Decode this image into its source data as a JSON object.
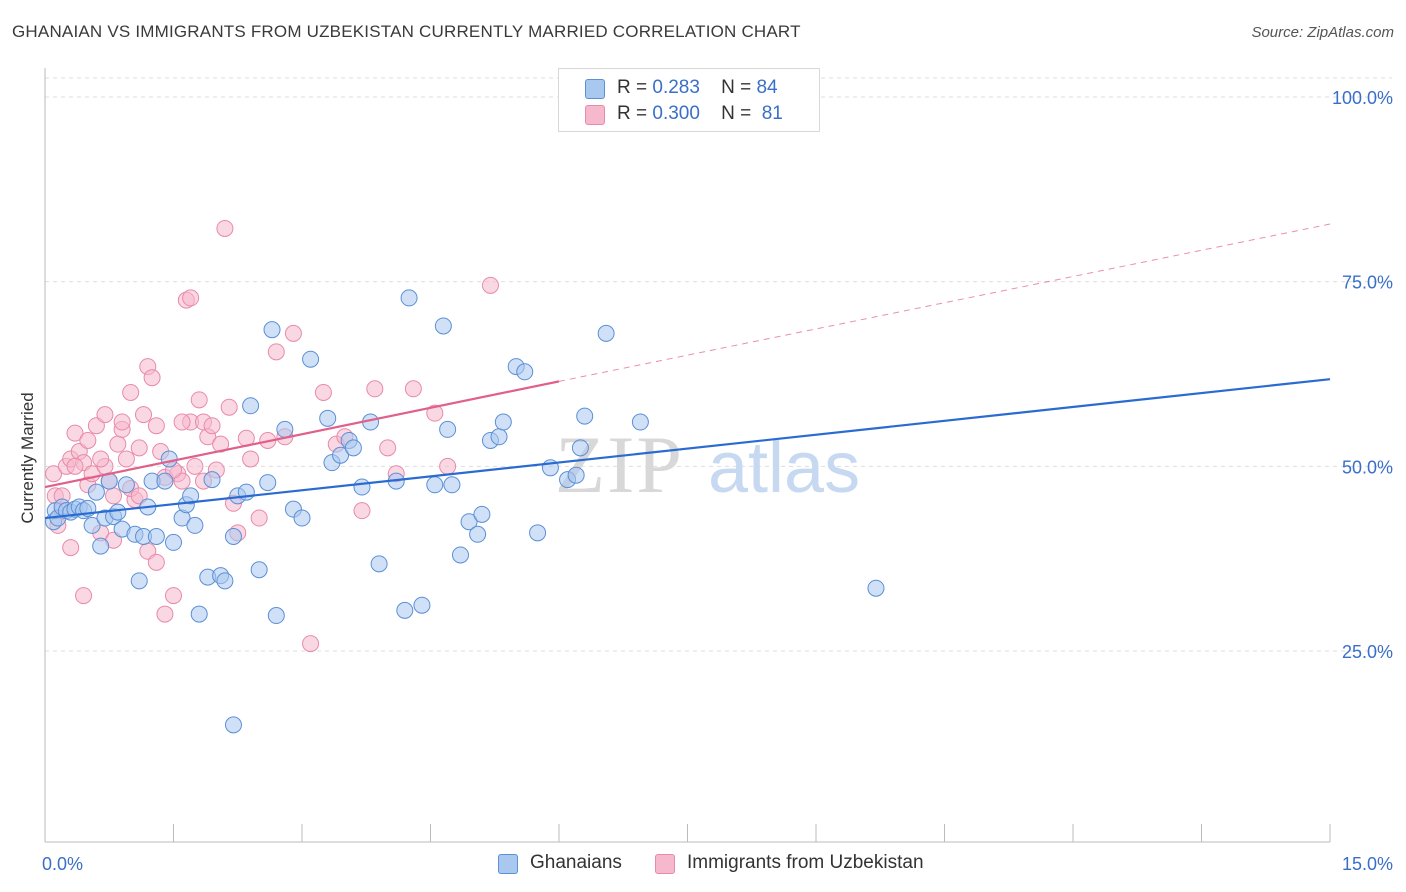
{
  "header": {
    "title": "GHANAIAN VS IMMIGRANTS FROM UZBEKISTAN CURRENTLY MARRIED CORRELATION CHART",
    "source": "Source: ZipAtlas.com"
  },
  "legend": {
    "rows": [
      {
        "r_label": "R =",
        "r_value": "0.283",
        "n_label": "N =",
        "n_value": "84"
      },
      {
        "r_label": "R =",
        "r_value": "0.300",
        "n_label": "N =",
        "n_value": "81"
      }
    ]
  },
  "watermark": {
    "zip": "ZIP",
    "atlas": "atlas"
  },
  "colors": {
    "blue_fill": "#a9c8f0",
    "blue_stroke": "#5b8fd6",
    "blue_line": "#2a6bd1",
    "pink_fill": "#f6b8cc",
    "pink_stroke": "#e98aa8",
    "pink_line": "#e0608a",
    "axis_label": "#3a6fc8",
    "grid": "#dddddd"
  },
  "chart_data": {
    "type": "scatter",
    "title": "GHANAIAN VS IMMIGRANTS FROM UZBEKISTAN CURRENTLY MARRIED CORRELATION CHART",
    "xlabel": "",
    "ylabel": "Currently Married",
    "xlim": [
      0,
      15
    ],
    "ylim": [
      0,
      105
    ],
    "x_tick_labels": [
      "0.0%",
      "15.0%"
    ],
    "y_tick_labels": [
      "25.0%",
      "50.0%",
      "75.0%",
      "100.0%"
    ],
    "y_ticks": [
      25,
      50,
      75,
      100
    ],
    "grid": true,
    "legend_position": "top-center",
    "series": [
      {
        "name": "Ghanaians",
        "color": "#a9c8f0",
        "r": 0.283,
        "n": 84,
        "trend": {
          "x": [
            0,
            15
          ],
          "y": [
            43.0,
            61.8
          ],
          "style": "solid"
        },
        "points": [
          [
            0.1,
            42.5
          ],
          [
            0.12,
            44
          ],
          [
            0.15,
            43
          ],
          [
            0.2,
            44.5
          ],
          [
            0.25,
            44
          ],
          [
            0.3,
            43.8
          ],
          [
            0.35,
            44.2
          ],
          [
            0.4,
            44.5
          ],
          [
            0.45,
            44
          ],
          [
            0.5,
            44.3
          ],
          [
            0.55,
            42
          ],
          [
            0.6,
            46.5
          ],
          [
            0.65,
            39.2
          ],
          [
            0.7,
            43
          ],
          [
            0.75,
            48
          ],
          [
            0.8,
            43.2
          ],
          [
            0.85,
            43.8
          ],
          [
            0.9,
            41.5
          ],
          [
            0.95,
            47.5
          ],
          [
            1.05,
            40.8
          ],
          [
            1.1,
            34.5
          ],
          [
            1.15,
            40.5
          ],
          [
            1.2,
            44.5
          ],
          [
            1.25,
            48
          ],
          [
            1.3,
            40.5
          ],
          [
            1.4,
            48
          ],
          [
            1.45,
            51
          ],
          [
            1.5,
            39.7
          ],
          [
            1.6,
            43
          ],
          [
            1.65,
            44.8
          ],
          [
            1.7,
            46
          ],
          [
            1.75,
            42
          ],
          [
            1.8,
            30
          ],
          [
            1.9,
            35
          ],
          [
            1.95,
            48.2
          ],
          [
            2.05,
            35.2
          ],
          [
            2.1,
            34.5
          ],
          [
            2.2,
            40.5
          ],
          [
            2.25,
            46
          ],
          [
            2.35,
            46.5
          ],
          [
            2.4,
            58.2
          ],
          [
            2.5,
            36
          ],
          [
            2.6,
            47.8
          ],
          [
            2.65,
            68.5
          ],
          [
            2.7,
            29.8
          ],
          [
            2.8,
            55
          ],
          [
            2.9,
            44.2
          ],
          [
            3.0,
            43
          ],
          [
            3.1,
            64.5
          ],
          [
            3.3,
            56.5
          ],
          [
            3.35,
            50.5
          ],
          [
            3.45,
            51.5
          ],
          [
            3.55,
            53.5
          ],
          [
            3.6,
            52.5
          ],
          [
            3.7,
            47.2
          ],
          [
            3.8,
            56
          ],
          [
            3.9,
            36.8
          ],
          [
            4.1,
            48
          ],
          [
            4.2,
            30.5
          ],
          [
            4.25,
            72.8
          ],
          [
            4.4,
            31.2
          ],
          [
            4.55,
            47.5
          ],
          [
            4.65,
            69
          ],
          [
            4.7,
            55
          ],
          [
            4.75,
            47.5
          ],
          [
            4.85,
            38
          ],
          [
            4.95,
            42.5
          ],
          [
            5.05,
            40.8
          ],
          [
            5.1,
            43.5
          ],
          [
            5.2,
            53.5
          ],
          [
            5.3,
            54
          ],
          [
            5.35,
            56
          ],
          [
            5.5,
            63.5
          ],
          [
            5.6,
            62.8
          ],
          [
            5.75,
            41
          ],
          [
            5.9,
            49.8
          ],
          [
            6.1,
            48.2
          ],
          [
            6.2,
            48.8
          ],
          [
            6.25,
            52.5
          ],
          [
            6.3,
            56.8
          ],
          [
            6.55,
            68
          ],
          [
            6.95,
            56
          ],
          [
            9.7,
            33.5
          ],
          [
            2.2,
            15
          ]
        ]
      },
      {
        "name": "Immigrants from Uzbekistan",
        "color": "#f6b8cc",
        "r": 0.3,
        "n": 81,
        "trend": {
          "x": [
            0,
            6
          ],
          "y": [
            47.2,
            61.5
          ],
          "style": "solid"
        },
        "trend_extension": {
          "x": [
            6,
            15
          ],
          "y": [
            61.5,
            82.8
          ],
          "style": "dashed"
        },
        "points": [
          [
            0.1,
            49
          ],
          [
            0.12,
            46
          ],
          [
            0.15,
            42
          ],
          [
            0.2,
            44
          ],
          [
            0.25,
            50
          ],
          [
            0.3,
            51
          ],
          [
            0.35,
            54.5
          ],
          [
            0.4,
            52
          ],
          [
            0.45,
            50.5
          ],
          [
            0.5,
            47.5
          ],
          [
            0.55,
            49
          ],
          [
            0.6,
            55.5
          ],
          [
            0.65,
            41
          ],
          [
            0.7,
            50
          ],
          [
            0.75,
            48
          ],
          [
            0.8,
            46
          ],
          [
            0.85,
            53
          ],
          [
            0.9,
            55
          ],
          [
            0.95,
            51
          ],
          [
            1.0,
            60
          ],
          [
            1.05,
            45.5
          ],
          [
            1.1,
            52.5
          ],
          [
            1.15,
            57
          ],
          [
            1.2,
            63.5
          ],
          [
            1.25,
            62
          ],
          [
            1.3,
            55.5
          ],
          [
            1.35,
            52
          ],
          [
            1.4,
            48.5
          ],
          [
            1.5,
            32.5
          ],
          [
            1.55,
            49
          ],
          [
            1.6,
            48
          ],
          [
            1.65,
            72.5
          ],
          [
            1.7,
            56
          ],
          [
            1.75,
            50
          ],
          [
            1.8,
            59
          ],
          [
            1.85,
            56
          ],
          [
            1.9,
            54
          ],
          [
            1.95,
            55.5
          ],
          [
            2.05,
            53
          ],
          [
            2.1,
            82.2
          ],
          [
            2.2,
            45
          ],
          [
            2.25,
            41
          ],
          [
            2.35,
            53.8
          ],
          [
            2.4,
            51
          ],
          [
            2.5,
            43
          ],
          [
            2.6,
            53.5
          ],
          [
            2.7,
            65.5
          ],
          [
            2.8,
            54
          ],
          [
            2.9,
            68
          ],
          [
            3.1,
            26
          ],
          [
            3.25,
            60
          ],
          [
            3.4,
            53
          ],
          [
            3.5,
            54
          ],
          [
            3.7,
            44
          ],
          [
            3.85,
            60.5
          ],
          [
            4.0,
            52.5
          ],
          [
            4.1,
            49
          ],
          [
            4.3,
            60.5
          ],
          [
            4.55,
            57.2
          ],
          [
            4.7,
            50
          ],
          [
            5.2,
            74.5
          ],
          [
            0.3,
            39
          ],
          [
            0.45,
            32.5
          ],
          [
            0.65,
            51
          ],
          [
            0.8,
            40
          ],
          [
            0.9,
            56
          ],
          [
            1.0,
            47
          ],
          [
            1.1,
            46
          ],
          [
            1.2,
            38.5
          ],
          [
            1.3,
            37
          ],
          [
            1.4,
            30
          ],
          [
            1.5,
            49.5
          ],
          [
            1.6,
            56
          ],
          [
            1.7,
            72.8
          ],
          [
            1.85,
            48
          ],
          [
            2.0,
            49.5
          ],
          [
            2.15,
            58
          ],
          [
            0.2,
            46
          ],
          [
            0.35,
            50
          ],
          [
            0.5,
            53.5
          ],
          [
            0.7,
            57
          ]
        ]
      }
    ]
  },
  "bottom_legend": [
    {
      "label": "Ghanaians"
    },
    {
      "label": "Immigrants from Uzbekistan"
    }
  ]
}
